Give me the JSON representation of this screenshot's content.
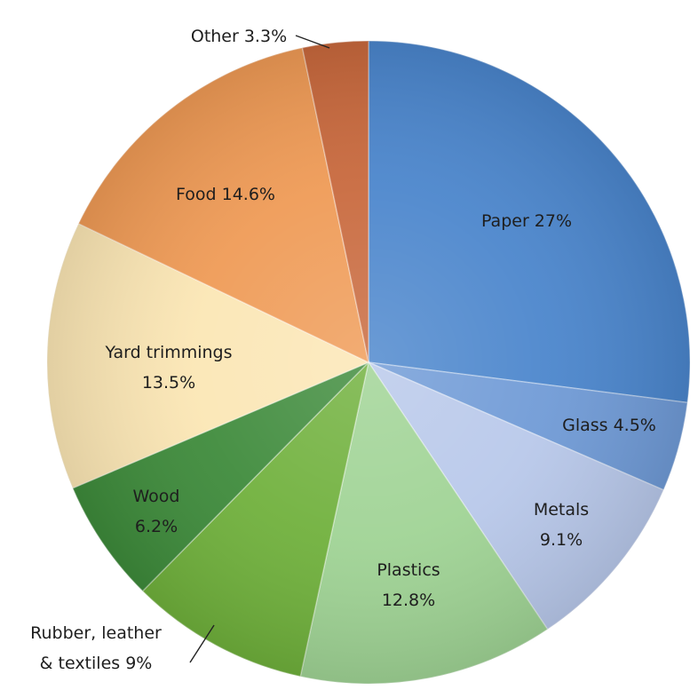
{
  "chart_data": {
    "type": "pie",
    "title": "",
    "start": "12 o'clock",
    "direction": "clockwise",
    "slices": [
      {
        "key": "paper",
        "value": 27,
        "color": "#4a85cc",
        "label_lines": [
          "Paper 27%"
        ]
      },
      {
        "key": "glass",
        "value": 4.5,
        "color": "#6f9ad6",
        "label_lines": [
          "Glass 4.5%"
        ]
      },
      {
        "key": "metals",
        "value": 9.1,
        "color": "#b8c8ea",
        "label_lines": [
          "Metals",
          "9.1%"
        ]
      },
      {
        "key": "plastics",
        "value": 12.8,
        "color": "#9fd394",
        "label_lines": [
          "Plastics",
          "12.8%"
        ]
      },
      {
        "key": "rubber",
        "value": 9,
        "color": "#6fb03b",
        "label_lines": [
          "Rubber, leather",
          "& textiles 9%"
        ]
      },
      {
        "key": "wood",
        "value": 6.2,
        "color": "#3d8a3a",
        "label_lines": [
          "Wood",
          "6.2%"
        ]
      },
      {
        "key": "yard",
        "value": 13.5,
        "color": "#fbe6b4",
        "label_lines": [
          "Yard trimmings",
          "13.5%"
        ]
      },
      {
        "key": "food",
        "value": 14.6,
        "color": "#ef9a55",
        "label_lines": [
          "Food 14.6%"
        ]
      },
      {
        "key": "other",
        "value": 3.3,
        "color": "#c8683c",
        "label_lines": [
          "Other 3.3%"
        ]
      }
    ]
  }
}
